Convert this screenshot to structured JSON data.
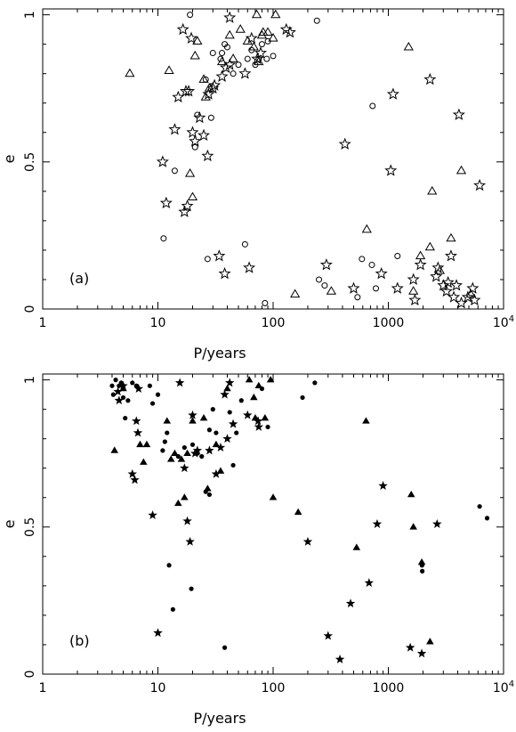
{
  "chart_data": [
    {
      "type": "scatter",
      "panel_label": "(a)",
      "xlabel": "P/years",
      "ylabel": "e",
      "x_scale": "log",
      "xlim": [
        1,
        10000
      ],
      "ylim": [
        0,
        1.02
      ],
      "x_ticks": [
        {
          "value": 1,
          "label": "1"
        },
        {
          "value": 10,
          "label": "10"
        },
        {
          "value": 100,
          "label": "100"
        },
        {
          "value": 1000,
          "label": "1000"
        },
        {
          "value": 10000,
          "label": "10",
          "sup": "4"
        }
      ],
      "y_ticks": [
        {
          "value": 0,
          "label": "0"
        },
        {
          "value": 0.5,
          "label": "0.5"
        },
        {
          "value": 1,
          "label": "1"
        }
      ],
      "grid": false,
      "series": [
        {
          "marker": "open-circle",
          "points": [
            [
              11.2,
              0.24
            ],
            [
              14,
              0.47
            ],
            [
              19,
              1.0
            ],
            [
              21,
              0.55
            ],
            [
              22,
              0.66
            ],
            [
              26,
              0.78
            ],
            [
              27,
              0.17
            ],
            [
              29,
              0.65
            ],
            [
              30,
              0.87
            ],
            [
              35,
              0.85
            ],
            [
              36,
              0.87
            ],
            [
              38,
              0.9
            ],
            [
              40,
              0.89
            ],
            [
              45,
              0.8
            ],
            [
              50,
              0.83
            ],
            [
              57,
              0.22
            ],
            [
              60,
              0.85
            ],
            [
              65,
              0.88
            ],
            [
              70,
              0.83
            ],
            [
              75,
              0.85
            ],
            [
              80,
              0.9
            ],
            [
              85,
              0.02
            ],
            [
              88,
              0.85
            ],
            [
              90,
              0.91
            ],
            [
              100,
              0.86
            ],
            [
              240,
              0.98
            ],
            [
              250,
              0.1
            ],
            [
              280,
              0.08
            ],
            [
              540,
              0.04
            ],
            [
              590,
              0.17
            ],
            [
              720,
              0.15
            ],
            [
              730,
              0.69
            ],
            [
              780,
              0.07
            ],
            [
              1200,
              0.18
            ]
          ]
        },
        {
          "marker": "open-triangle",
          "points": [
            [
              5.7,
              0.8
            ],
            [
              12.5,
              0.81
            ],
            [
              19,
              0.46
            ],
            [
              20,
              0.38
            ],
            [
              21,
              0.86
            ],
            [
              22,
              0.91
            ],
            [
              25,
              0.78
            ],
            [
              26,
              0.72
            ],
            [
              28,
              0.75
            ],
            [
              36,
              0.84
            ],
            [
              42,
              0.93
            ],
            [
              45,
              0.85
            ],
            [
              52,
              0.95
            ],
            [
              60,
              0.91
            ],
            [
              68,
              0.89
            ],
            [
              72,
              1.0
            ],
            [
              75,
              0.84
            ],
            [
              80,
              0.93
            ],
            [
              82,
              0.94
            ],
            [
              90,
              0.94
            ],
            [
              100,
              0.92
            ],
            [
              105,
              1.0
            ],
            [
              155,
              0.05
            ],
            [
              320,
              0.06
            ],
            [
              650,
              0.27
            ],
            [
              1500,
              0.89
            ],
            [
              1650,
              0.06
            ],
            [
              1900,
              0.18
            ],
            [
              2300,
              0.21
            ],
            [
              2400,
              0.4
            ],
            [
              2800,
              0.13
            ],
            [
              3500,
              0.24
            ],
            [
              4300,
              0.47
            ],
            [
              5200,
              0.05
            ]
          ]
        },
        {
          "marker": "open-star",
          "points": [
            [
              11,
              0.5
            ],
            [
              11.8,
              0.36
            ],
            [
              14,
              0.61
            ],
            [
              15,
              0.72
            ],
            [
              16.5,
              0.95
            ],
            [
              17,
              0.33
            ],
            [
              17.5,
              0.74
            ],
            [
              18,
              0.35
            ],
            [
              18.5,
              0.74
            ],
            [
              19.5,
              0.92
            ],
            [
              20,
              0.6
            ],
            [
              21,
              0.57
            ],
            [
              23,
              0.65
            ],
            [
              25,
              0.59
            ],
            [
              27,
              0.52
            ],
            [
              27.5,
              0.73
            ],
            [
              30,
              0.75
            ],
            [
              31,
              0.76
            ],
            [
              34,
              0.18
            ],
            [
              36,
              0.79
            ],
            [
              38,
              0.12
            ],
            [
              39,
              0.82
            ],
            [
              42,
              0.83
            ],
            [
              42,
              0.99
            ],
            [
              57,
              0.8
            ],
            [
              62,
              0.14
            ],
            [
              65,
              0.92
            ],
            [
              73,
              0.85
            ],
            [
              78,
              0.87
            ],
            [
              130,
              0.95
            ],
            [
              140,
              0.94
            ],
            [
              290,
              0.15
            ],
            [
              420,
              0.56
            ],
            [
              500,
              0.07
            ],
            [
              870,
              0.12
            ],
            [
              1050,
              0.47
            ],
            [
              1100,
              0.73
            ],
            [
              1200,
              0.07
            ],
            [
              1650,
              0.1
            ],
            [
              1700,
              0.03
            ],
            [
              1900,
              0.15
            ],
            [
              2300,
              0.78
            ],
            [
              2600,
              0.11
            ],
            [
              2700,
              0.14
            ],
            [
              3000,
              0.08
            ],
            [
              3200,
              0.06
            ],
            [
              3300,
              0.09
            ],
            [
              3500,
              0.18
            ],
            [
              3700,
              0.04
            ],
            [
              3900,
              0.08
            ],
            [
              4100,
              0.66
            ],
            [
              4300,
              0.02
            ],
            [
              4900,
              0.04
            ],
            [
              5400,
              0.07
            ],
            [
              5600,
              0.03
            ],
            [
              6200,
              0.42
            ]
          ]
        }
      ]
    },
    {
      "type": "scatter",
      "panel_label": "(b)",
      "xlabel": "P/years",
      "ylabel": "e",
      "x_scale": "log",
      "xlim": [
        1,
        10000
      ],
      "ylim": [
        0,
        1.02
      ],
      "x_ticks": [
        {
          "value": 1,
          "label": "1"
        },
        {
          "value": 10,
          "label": "10"
        },
        {
          "value": 100,
          "label": "100"
        },
        {
          "value": 1000,
          "label": "1000"
        },
        {
          "value": 10000,
          "label": "10",
          "sup": "4"
        }
      ],
      "y_ticks": [
        {
          "value": 0,
          "label": "0"
        },
        {
          "value": 0.5,
          "label": "0.5"
        },
        {
          "value": 1,
          "label": "1"
        }
      ],
      "grid": false,
      "series": [
        {
          "marker": "filled-circle",
          "points": [
            [
              4,
              0.98
            ],
            [
              4.1,
              0.95
            ],
            [
              4.3,
              1.0
            ],
            [
              4.6,
              0.98
            ],
            [
              4.8,
              0.99
            ],
            [
              5,
              0.94
            ],
            [
              5.2,
              0.87
            ],
            [
              5.5,
              0.93
            ],
            [
              6,
              0.99
            ],
            [
              6.5,
              0.98
            ],
            [
              8.5,
              0.98
            ],
            [
              9,
              0.92
            ],
            [
              10,
              0.95
            ],
            [
              11,
              0.76
            ],
            [
              11.5,
              0.79
            ],
            [
              12,
              0.82
            ],
            [
              12.5,
              0.37
            ],
            [
              13.5,
              0.22
            ],
            [
              15,
              0.74
            ],
            [
              17,
              0.77
            ],
            [
              19.5,
              0.29
            ],
            [
              20,
              0.78
            ],
            [
              22,
              0.75
            ],
            [
              24,
              0.74
            ],
            [
              26,
              0.62
            ],
            [
              28,
              0.61
            ],
            [
              28,
              0.83
            ],
            [
              30,
              0.9
            ],
            [
              32,
              0.82
            ],
            [
              38,
              0.09
            ],
            [
              42,
              0.89
            ],
            [
              45,
              0.71
            ],
            [
              48,
              0.82
            ],
            [
              53,
              0.93
            ],
            [
              80,
              0.97
            ],
            [
              90,
              0.84
            ],
            [
              180,
              0.94
            ],
            [
              230,
              0.99
            ],
            [
              1960,
              0.37
            ],
            [
              1970,
              0.35
            ],
            [
              6200,
              0.57
            ],
            [
              7200,
              0.53
            ]
          ]
        },
        {
          "marker": "filled-triangle",
          "points": [
            [
              4.2,
              0.76
            ],
            [
              5,
              0.97
            ],
            [
              7,
              0.78
            ],
            [
              7.5,
              0.72
            ],
            [
              8,
              0.78
            ],
            [
              12,
              0.86
            ],
            [
              13,
              0.73
            ],
            [
              14,
              0.75
            ],
            [
              15,
              0.58
            ],
            [
              16,
              0.73
            ],
            [
              17,
              0.6
            ],
            [
              18,
              0.75
            ],
            [
              20,
              0.86
            ],
            [
              25,
              0.87
            ],
            [
              27,
              0.63
            ],
            [
              32,
              0.78
            ],
            [
              35,
              0.69
            ],
            [
              40,
              0.97
            ],
            [
              62,
              1.0
            ],
            [
              68,
              0.94
            ],
            [
              70,
              0.87
            ],
            [
              75,
              0.98
            ],
            [
              85,
              0.87
            ],
            [
              95,
              1.0
            ],
            [
              100,
              0.6
            ],
            [
              165,
              0.55
            ],
            [
              530,
              0.43
            ],
            [
              640,
              0.86
            ],
            [
              1580,
              0.61
            ],
            [
              1650,
              0.5
            ],
            [
              1950,
              0.38
            ],
            [
              2300,
              0.11
            ]
          ]
        },
        {
          "marker": "filled-star",
          "points": [
            [
              4.5,
              0.96
            ],
            [
              4.6,
              0.93
            ],
            [
              5,
              0.98
            ],
            [
              6,
              0.68
            ],
            [
              6.3,
              0.66
            ],
            [
              6.5,
              0.86
            ],
            [
              6.7,
              0.82
            ],
            [
              6.8,
              0.97
            ],
            [
              9,
              0.54
            ],
            [
              10,
              0.14
            ],
            [
              15.5,
              0.99
            ],
            [
              17,
              0.7
            ],
            [
              18,
              0.52
            ],
            [
              19,
              0.45
            ],
            [
              20,
              0.88
            ],
            [
              21,
              0.75
            ],
            [
              22,
              0.76
            ],
            [
              28,
              0.76
            ],
            [
              32,
              0.68
            ],
            [
              35,
              0.77
            ],
            [
              38,
              0.95
            ],
            [
              40,
              0.8
            ],
            [
              42,
              0.99
            ],
            [
              45,
              0.85
            ],
            [
              60,
              0.88
            ],
            [
              74,
              0.86
            ],
            [
              75,
              0.84
            ],
            [
              200,
              0.45
            ],
            [
              300,
              0.13
            ],
            [
              380,
              0.05
            ],
            [
              470,
              0.24
            ],
            [
              680,
              0.31
            ],
            [
              800,
              0.51
            ],
            [
              900,
              0.64
            ],
            [
              1550,
              0.09
            ],
            [
              1950,
              0.07
            ],
            [
              2650,
              0.51
            ]
          ]
        }
      ]
    }
  ]
}
